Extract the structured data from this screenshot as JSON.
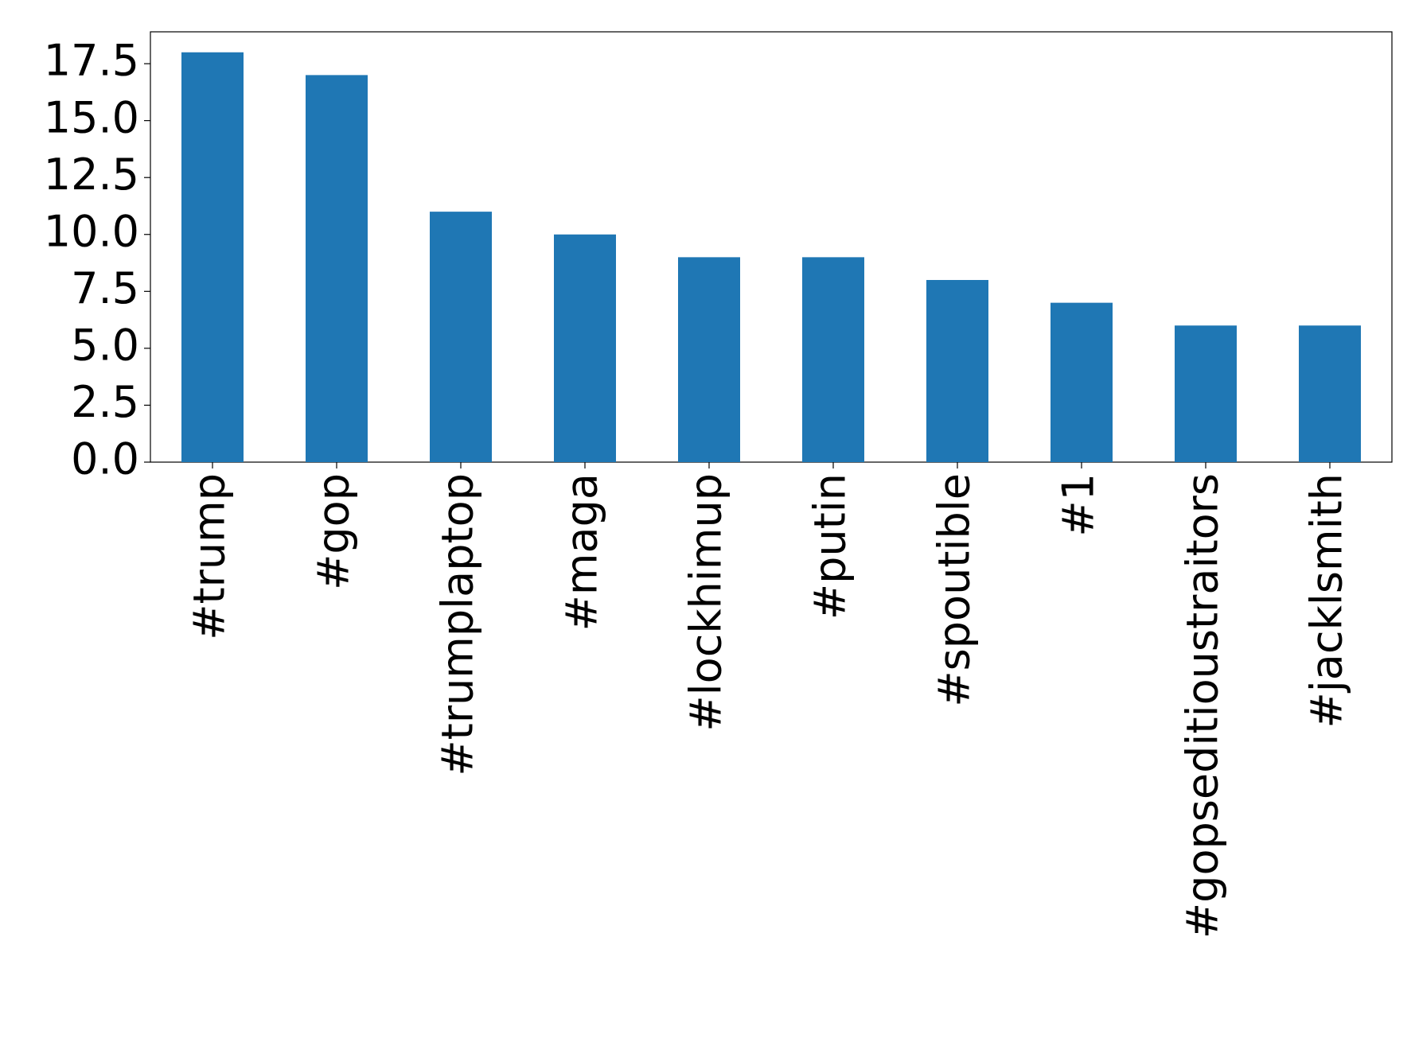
{
  "chart_data": {
    "type": "bar",
    "categories": [
      "#trump",
      "#gop",
      "#trumplaptop",
      "#maga",
      "#lockhimup",
      "#putin",
      "#spoutible",
      "#1",
      "#gopseditioustraitors",
      "#jacklsmith"
    ],
    "values": [
      18,
      17,
      11,
      10,
      9,
      9,
      8,
      7,
      6,
      6
    ],
    "color": "#1f77b4",
    "ylim": [
      0,
      18.9
    ],
    "yticks": [
      {
        "value": 0,
        "label": "0.0"
      },
      2.5,
      {
        "value": 5,
        "label": "5.0"
      },
      7.5,
      {
        "value": 10,
        "label": "10.0"
      },
      12.5,
      {
        "value": 15,
        "label": "15.0"
      },
      17.5
    ],
    "grid": false
  }
}
